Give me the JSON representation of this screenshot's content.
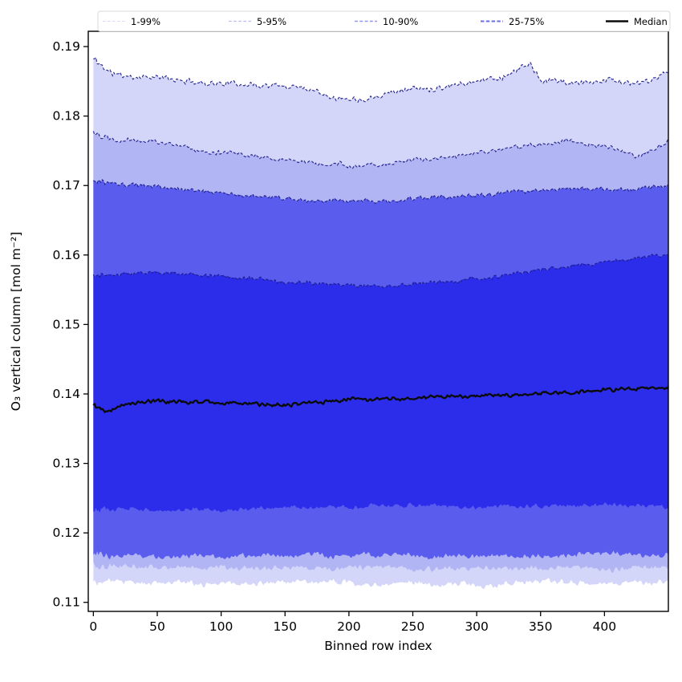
{
  "figure": {
    "xlabel": "Binned row index",
    "ylabel": "O₃ vertical column [mol m⁻²]",
    "x_ticks": [
      "0",
      "50",
      "100",
      "150",
      "200",
      "250",
      "300",
      "350",
      "400"
    ],
    "x_tick_values": [
      0,
      50,
      100,
      150,
      200,
      250,
      300,
      350,
      400
    ],
    "y_ticks": [
      "0.11",
      "0.12",
      "0.13",
      "0.14",
      "0.15",
      "0.16",
      "0.17",
      "0.18",
      "0.19"
    ],
    "y_tick_values": [
      0.11,
      0.12,
      0.13,
      0.14,
      0.15,
      0.16,
      0.17,
      0.18,
      0.19
    ],
    "xlim": [
      -4,
      450
    ],
    "ylim": [
      0.1087,
      0.1922
    ],
    "spine_color": "#000000",
    "background": "#ffffff"
  },
  "legend": {
    "position": "top",
    "border_color": "#d9d9d9",
    "background": "#ffffff",
    "entries": [
      {
        "label": "1-99%",
        "color": "#d8daf5",
        "style": "dashed",
        "width": 1.1
      },
      {
        "label": "5-95%",
        "color": "#b9bdf4",
        "style": "dashed",
        "width": 1.2
      },
      {
        "label": "10-90%",
        "color": "#9096f1",
        "style": "dashed",
        "width": 1.4
      },
      {
        "label": "25-75%",
        "color": "#6a6eea",
        "style": "dashed",
        "width": 1.9
      },
      {
        "label": "Median",
        "color": "#0b0b0b",
        "style": "solid",
        "width": 2.6
      }
    ]
  },
  "chart_data": {
    "type": "area",
    "subtype": "percentile-band-fan-chart",
    "title": "",
    "xlabel": "Binned row index",
    "ylabel": "O3 vertical column [mol m-2]",
    "x_range": [
      0,
      450
    ],
    "xlim": [
      -4,
      450
    ],
    "ylim": [
      0.1087,
      0.1922
    ],
    "grid": false,
    "legend_position": "top-outside-horizontal",
    "edge_line_color": "#1b1b87",
    "median_color": "#0b0b0b",
    "bands": [
      {
        "name": "1-99%",
        "lower": "p1",
        "upper": "p99",
        "fill": "#d3d6f9",
        "edge_on_upper": true
      },
      {
        "name": "5-95%",
        "lower": "p5",
        "upper": "p95",
        "fill": "#b1b5f4",
        "edge_on_upper": true
      },
      {
        "name": "10-90%",
        "lower": "p10",
        "upper": "p90",
        "fill": "#5a5cee",
        "edge_on_upper": true
      },
      {
        "name": "25-75%",
        "lower": "p25",
        "upper": "p75",
        "fill": "#2c2ceb",
        "edge_on_upper": true
      }
    ],
    "series_keypoints": {
      "p99": [
        [
          0,
          0.1882
        ],
        [
          5,
          0.1874
        ],
        [
          15,
          0.1861
        ],
        [
          30,
          0.1857
        ],
        [
          50,
          0.1855
        ],
        [
          75,
          0.185
        ],
        [
          100,
          0.1847
        ],
        [
          125,
          0.1845
        ],
        [
          150,
          0.1843
        ],
        [
          170,
          0.1839
        ],
        [
          190,
          0.1828
        ],
        [
          210,
          0.1822
        ],
        [
          225,
          0.1832
        ],
        [
          250,
          0.1839
        ],
        [
          275,
          0.1843
        ],
        [
          300,
          0.1851
        ],
        [
          320,
          0.1856
        ],
        [
          335,
          0.1869
        ],
        [
          342,
          0.1876
        ],
        [
          350,
          0.1847
        ],
        [
          360,
          0.1852
        ],
        [
          375,
          0.1846
        ],
        [
          390,
          0.1851
        ],
        [
          400,
          0.1855
        ],
        [
          415,
          0.185
        ],
        [
          425,
          0.1846
        ],
        [
          437,
          0.1852
        ],
        [
          450,
          0.1862
        ]
      ],
      "p95": [
        [
          0,
          0.1778
        ],
        [
          10,
          0.1771
        ],
        [
          25,
          0.1768
        ],
        [
          50,
          0.1763
        ],
        [
          75,
          0.1754
        ],
        [
          100,
          0.1747
        ],
        [
          125,
          0.1742
        ],
        [
          150,
          0.1737
        ],
        [
          175,
          0.1731
        ],
        [
          200,
          0.1727
        ],
        [
          225,
          0.173
        ],
        [
          250,
          0.1735
        ],
        [
          275,
          0.174
        ],
        [
          300,
          0.1747
        ],
        [
          325,
          0.1752
        ],
        [
          350,
          0.176
        ],
        [
          370,
          0.1766
        ],
        [
          385,
          0.1757
        ],
        [
          400,
          0.1754
        ],
        [
          415,
          0.1747
        ],
        [
          425,
          0.1741
        ],
        [
          440,
          0.1753
        ],
        [
          450,
          0.1767
        ]
      ],
      "p90": [
        [
          0,
          0.1706
        ],
        [
          20,
          0.17
        ],
        [
          50,
          0.1697
        ],
        [
          75,
          0.1694
        ],
        [
          100,
          0.169
        ],
        [
          125,
          0.1684
        ],
        [
          150,
          0.1681
        ],
        [
          175,
          0.1678
        ],
        [
          200,
          0.1676
        ],
        [
          225,
          0.1677
        ],
        [
          250,
          0.168
        ],
        [
          275,
          0.1683
        ],
        [
          300,
          0.1687
        ],
        [
          325,
          0.169
        ],
        [
          350,
          0.1695
        ],
        [
          375,
          0.1694
        ],
        [
          400,
          0.1696
        ],
        [
          425,
          0.1694
        ],
        [
          450,
          0.1701
        ]
      ],
      "p75": [
        [
          0,
          0.157
        ],
        [
          25,
          0.1573
        ],
        [
          50,
          0.1576
        ],
        [
          75,
          0.1572
        ],
        [
          100,
          0.157
        ],
        [
          125,
          0.1565
        ],
        [
          150,
          0.156
        ],
        [
          175,
          0.1558
        ],
        [
          200,
          0.1556
        ],
        [
          225,
          0.1555
        ],
        [
          250,
          0.1559
        ],
        [
          275,
          0.1562
        ],
        [
          300,
          0.1566
        ],
        [
          325,
          0.1572
        ],
        [
          350,
          0.1579
        ],
        [
          375,
          0.1585
        ],
        [
          400,
          0.159
        ],
        [
          425,
          0.1594
        ],
        [
          450,
          0.1601
        ]
      ],
      "median": [
        [
          0,
          0.1383
        ],
        [
          12,
          0.1378
        ],
        [
          30,
          0.1387
        ],
        [
          50,
          0.139
        ],
        [
          75,
          0.1388
        ],
        [
          100,
          0.1388
        ],
        [
          125,
          0.1385
        ],
        [
          150,
          0.1384
        ],
        [
          175,
          0.1389
        ],
        [
          200,
          0.1392
        ],
        [
          225,
          0.1393
        ],
        [
          250,
          0.1394
        ],
        [
          275,
          0.1396
        ],
        [
          300,
          0.1398
        ],
        [
          325,
          0.1399
        ],
        [
          350,
          0.1401
        ],
        [
          375,
          0.1403
        ],
        [
          400,
          0.1406
        ],
        [
          425,
          0.1407
        ],
        [
          450,
          0.141
        ]
      ],
      "p25": [
        [
          0,
          0.1236
        ],
        [
          50,
          0.1234
        ],
        [
          100,
          0.1233
        ],
        [
          150,
          0.1237
        ],
        [
          200,
          0.1238
        ],
        [
          250,
          0.1238
        ],
        [
          300,
          0.1237
        ],
        [
          350,
          0.1239
        ],
        [
          400,
          0.1241
        ],
        [
          450,
          0.1237
        ]
      ],
      "p10": [
        [
          0,
          0.1171
        ],
        [
          50,
          0.1167
        ],
        [
          100,
          0.1166
        ],
        [
          150,
          0.1167
        ],
        [
          200,
          0.1168
        ],
        [
          250,
          0.1167
        ],
        [
          300,
          0.1167
        ],
        [
          350,
          0.1167
        ],
        [
          400,
          0.1169
        ],
        [
          450,
          0.1168
        ]
      ],
      "p5": [
        [
          0,
          0.1153
        ],
        [
          50,
          0.115
        ],
        [
          100,
          0.1149
        ],
        [
          150,
          0.115
        ],
        [
          200,
          0.115
        ],
        [
          250,
          0.1149
        ],
        [
          300,
          0.1149
        ],
        [
          350,
          0.1149
        ],
        [
          400,
          0.115
        ],
        [
          450,
          0.115
        ]
      ],
      "p1": [
        [
          0,
          0.1131
        ],
        [
          50,
          0.1128
        ],
        [
          100,
          0.1127
        ],
        [
          150,
          0.1129
        ],
        [
          200,
          0.1128
        ],
        [
          250,
          0.1127
        ],
        [
          300,
          0.1127
        ],
        [
          350,
          0.1128
        ],
        [
          400,
          0.1128
        ],
        [
          450,
          0.1128
        ]
      ]
    },
    "noise_amplitude": {
      "p99": 0.00055,
      "p95": 0.00045,
      "p90": 0.0004,
      "p75": 0.00038,
      "median": 0.00035,
      "p25": 0.00042,
      "p10": 0.0005,
      "p5": 0.0005,
      "p1": 0.00055
    },
    "noise_seeds": {
      "p99": 11,
      "p95": 22,
      "p90": 33,
      "p75": 44,
      "median": 55,
      "p25": 66,
      "p10": 77,
      "p5": 88,
      "p1": 99
    }
  }
}
